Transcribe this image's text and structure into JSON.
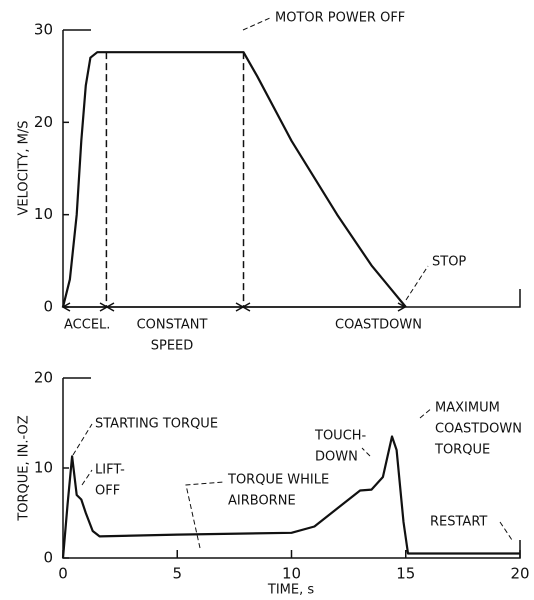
{
  "chart_data": [
    {
      "type": "line",
      "ylabel": "VELOCITY, M/S",
      "x": [
        0,
        0.3,
        0.6,
        0.8,
        1.0,
        1.2,
        1.5,
        7.9,
        8.5,
        10,
        12,
        13.5,
        14.5,
        15
      ],
      "series": [
        {
          "color": "#111111",
          "values": [
            0,
            3,
            10,
            18,
            24,
            27,
            27.6,
            27.6,
            25,
            18,
            10,
            4.5,
            1.5,
            0
          ]
        }
      ],
      "phase_boundaries": [
        1.9,
        7.9
      ],
      "xlim": [
        0,
        20
      ],
      "ylim": [
        0,
        30
      ],
      "yticks": [
        0,
        10,
        20,
        30
      ],
      "annotations": [
        {
          "text": [
            "MOTOR POWER OFF"
          ]
        },
        {
          "text": [
            "STOP"
          ]
        },
        {
          "text": [
            "ACCEL."
          ]
        },
        {
          "text": [
            "CONSTANT",
            "SPEED"
          ]
        },
        {
          "text": [
            "COASTDOWN"
          ]
        }
      ]
    },
    {
      "type": "line",
      "ylabel": "TORQUE, IN.-OZ",
      "xlabel": "TIME, s",
      "x": [
        0,
        0.2,
        0.4,
        0.6,
        0.8,
        1.0,
        1.3,
        1.6,
        5,
        10,
        11,
        12,
        13,
        13.5,
        14,
        14.4,
        14.6,
        14.9,
        15.1,
        20
      ],
      "series": [
        {
          "color": "#111111",
          "values": [
            0,
            6,
            11.3,
            7,
            6.5,
            5,
            3,
            2.4,
            2.6,
            2.8,
            3.5,
            5.5,
            7.5,
            7.6,
            9,
            13.5,
            12,
            4,
            0.5,
            0.5
          ]
        }
      ],
      "xlim": [
        0,
        20
      ],
      "ylim": [
        0,
        20
      ],
      "xticks": [
        0,
        5,
        10,
        15,
        20
      ],
      "yticks": [
        0,
        10,
        20
      ],
      "annotations": [
        {
          "text": [
            "STARTING TORQUE"
          ]
        },
        {
          "text": [
            "LIFT-",
            "OFF"
          ]
        },
        {
          "text": [
            "TORQUE WHILE",
            "AIRBORNE"
          ]
        },
        {
          "text": [
            "TOUCH-",
            "DOWN"
          ]
        },
        {
          "text": [
            "MAXIMUM",
            "COASTDOWN",
            "TORQUE"
          ]
        },
        {
          "text": [
            "RESTART"
          ]
        }
      ]
    }
  ]
}
